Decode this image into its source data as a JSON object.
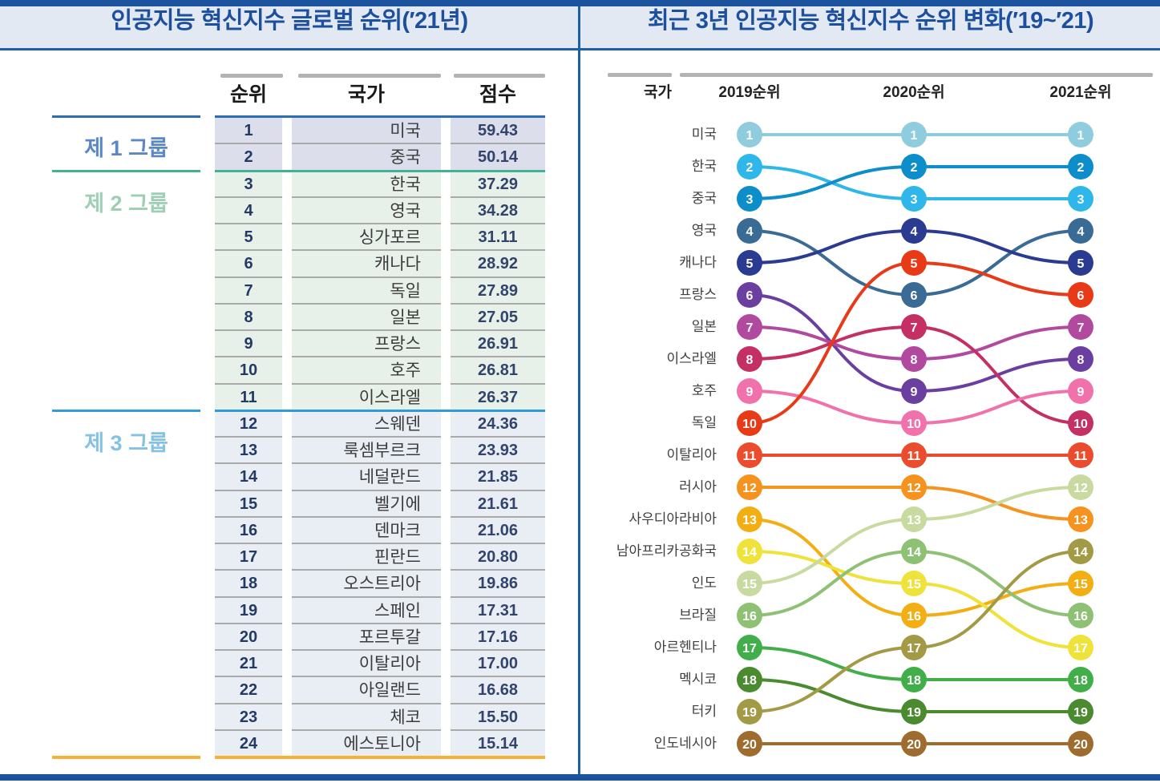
{
  "left_panel": {
    "title": "인공지능 혁신지수 글로벌 순위(′21년)",
    "columns": {
      "rank": "순위",
      "country": "국가",
      "score": "점수"
    },
    "groups": [
      {
        "label": "제 1 그룹",
        "label_color": "#5b88c4",
        "row_bg": "#dcdeeb",
        "rows": [
          {
            "rank": "1",
            "country": "미국",
            "score": "59.43"
          },
          {
            "rank": "2",
            "country": "중국",
            "score": "50.14"
          }
        ]
      },
      {
        "label": "제 2 그룹",
        "label_color": "#9ccfb3",
        "row_bg": "#e7f1ea",
        "rows": [
          {
            "rank": "3",
            "country": "한국",
            "score": "37.29"
          },
          {
            "rank": "4",
            "country": "영국",
            "score": "34.28"
          },
          {
            "rank": "5",
            "country": "싱가포르",
            "score": "31.11"
          },
          {
            "rank": "6",
            "country": "캐나다",
            "score": "28.92"
          },
          {
            "rank": "7",
            "country": "독일",
            "score": "27.89"
          },
          {
            "rank": "8",
            "country": "일본",
            "score": "27.05"
          },
          {
            "rank": "9",
            "country": "프랑스",
            "score": "26.91"
          },
          {
            "rank": "10",
            "country": "호주",
            "score": "26.81"
          },
          {
            "rank": "11",
            "country": "이스라엘",
            "score": "26.37"
          }
        ]
      },
      {
        "label": "제 3 그룹",
        "label_color": "#85c1e5",
        "row_bg": "#e9eef5",
        "rows": [
          {
            "rank": "12",
            "country": "스웨덴",
            "score": "24.36"
          },
          {
            "rank": "13",
            "country": "룩셈부르크",
            "score": "23.93"
          },
          {
            "rank": "14",
            "country": "네덜란드",
            "score": "21.85"
          },
          {
            "rank": "15",
            "country": "벨기에",
            "score": "21.61"
          },
          {
            "rank": "16",
            "country": "덴마크",
            "score": "21.06"
          },
          {
            "rank": "17",
            "country": "핀란드",
            "score": "20.80"
          },
          {
            "rank": "18",
            "country": "오스트리아",
            "score": "19.86"
          },
          {
            "rank": "19",
            "country": "스페인",
            "score": "17.31"
          },
          {
            "rank": "20",
            "country": "포르투갈",
            "score": "17.16"
          },
          {
            "rank": "21",
            "country": "이탈리아",
            "score": "17.00"
          },
          {
            "rank": "22",
            "country": "아일랜드",
            "score": "16.68"
          },
          {
            "rank": "23",
            "country": "체코",
            "score": "15.50"
          },
          {
            "rank": "24",
            "country": "에스토니아",
            "score": "15.14"
          }
        ]
      }
    ],
    "separator_colors": {
      "top": "#2c6db4",
      "group1_group2": "#43b294",
      "group2_group3": "#2f9cd9",
      "bottom": "#f9b134"
    }
  },
  "right_panel": {
    "title": "최근 3년 인공지능 혁신지수 순위 변화(′19~′21)",
    "columns": {
      "country": "국가",
      "y2019": "2019순위",
      "y2020": "2020순위",
      "y2021": "2021순위"
    }
  },
  "chart_data": {
    "type": "line",
    "subtype": "bump-chart",
    "x": [
      "2019",
      "2020",
      "2021"
    ],
    "y_meaning": "rank (1 = best, shown top)",
    "ylim": [
      1,
      20
    ],
    "series": [
      {
        "name": "미국",
        "color": "#8fccdd",
        "ranks": [
          1,
          1,
          1
        ]
      },
      {
        "name": "한국",
        "color": "#2eb7e8",
        "ranks": [
          2,
          3,
          3
        ]
      },
      {
        "name": "중국",
        "color": "#0d8ecb",
        "ranks": [
          3,
          2,
          2
        ]
      },
      {
        "name": "영국",
        "color": "#3a6b94",
        "ranks": [
          4,
          6,
          4
        ]
      },
      {
        "name": "캐나다",
        "color": "#2b3b92",
        "ranks": [
          5,
          4,
          5
        ]
      },
      {
        "name": "프랑스",
        "color": "#6b3fa0",
        "ranks": [
          6,
          9,
          8
        ]
      },
      {
        "name": "일본",
        "color": "#b14a9f",
        "ranks": [
          7,
          8,
          7
        ]
      },
      {
        "name": "이스라엘",
        "color": "#c42f64",
        "ranks": [
          8,
          7,
          10
        ]
      },
      {
        "name": "호주",
        "color": "#f172aa",
        "ranks": [
          9,
          10,
          9
        ]
      },
      {
        "name": "독일",
        "color": "#e83a17",
        "ranks": [
          10,
          5,
          6
        ]
      },
      {
        "name": "이탈리아",
        "color": "#ec4c2e",
        "ranks": [
          11,
          11,
          11
        ]
      },
      {
        "name": "러시아",
        "color": "#f6921e",
        "ranks": [
          12,
          12,
          13
        ]
      },
      {
        "name": "사우디아라비아",
        "color": "#f2ae13",
        "ranks": [
          13,
          16,
          15
        ]
      },
      {
        "name": "남아프리카공화국",
        "color": "#efe23a",
        "ranks": [
          14,
          15,
          17
        ]
      },
      {
        "name": "인도",
        "color": "#c8daa0",
        "ranks": [
          15,
          13,
          12
        ]
      },
      {
        "name": "브라질",
        "color": "#8fc174",
        "ranks": [
          16,
          14,
          16
        ]
      },
      {
        "name": "아르헨티나",
        "color": "#41ae49",
        "ranks": [
          17,
          18,
          18
        ]
      },
      {
        "name": "멕시코",
        "color": "#4a8b2f",
        "ranks": [
          18,
          19,
          19
        ]
      },
      {
        "name": "터키",
        "color": "#a39a46",
        "ranks": [
          19,
          17,
          14
        ]
      },
      {
        "name": "인도네시아",
        "color": "#9e6c2e",
        "ranks": [
          20,
          20,
          20
        ]
      }
    ]
  }
}
